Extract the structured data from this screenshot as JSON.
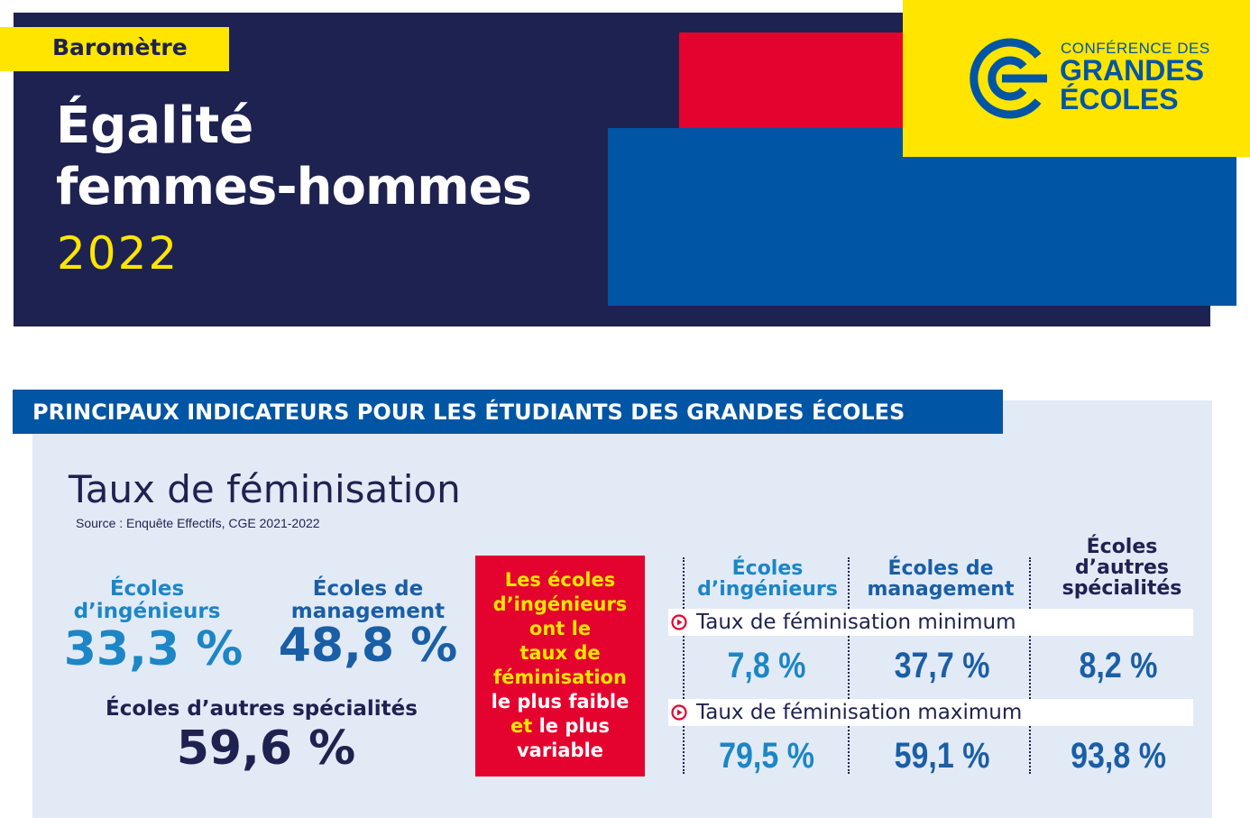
{
  "header": {
    "tag": "Baromètre",
    "title_line1": "Égalité",
    "title_line2": "femmes-hommes",
    "year": "2022",
    "logo_line1": "CONFÉRENCE DES",
    "logo_line2": "GRANDES",
    "logo_line3": "ÉCOLES",
    "colors": {
      "navy": "#1e2250",
      "yellow": "#ffe500",
      "red": "#e4032e",
      "blue": "#0055a4"
    }
  },
  "section": {
    "title": "PRINCIPAUX INDICATEURS POUR LES ÉTUDIANTS DES GRANDES ÉCOLES"
  },
  "feminisation": {
    "title": "Taux de féminisation",
    "source": "Source : Enquête Effectifs, CGE 2021-2022",
    "ingenieurs": {
      "label_line1": "Écoles",
      "label_line2": "d’ingénieurs",
      "value": "33,3 %"
    },
    "management": {
      "label_line1": "Écoles de",
      "label_line2": "management",
      "value": "48,8 %"
    },
    "autres": {
      "label": "Écoles d’autres spécialités",
      "value": "59,6 %"
    }
  },
  "callout": {
    "line1": "Les écoles",
    "line2": "d’ingénieurs",
    "line3": "ont le",
    "line4": "taux de",
    "line5": "féminisation",
    "line6": "le plus faible",
    "line7_et": "et",
    "line7_rest": " le plus",
    "line8": "variable"
  },
  "table": {
    "columns": [
      {
        "line1": "Écoles",
        "line2": "d’ingénieurs"
      },
      {
        "line1": "Écoles de",
        "line2": "management"
      },
      {
        "line1": "Écoles",
        "line2": "d’autres",
        "line3": "spécialités"
      }
    ],
    "min_label": "Taux de féminisation minimum",
    "max_label": "Taux de féminisation maximum",
    "min_values": [
      "7,8 %",
      "37,7 %",
      "8,2 %"
    ],
    "max_values": [
      "79,5 %",
      "59,1 %",
      "93,8 %"
    ],
    "icon": "play-circle-icon"
  }
}
